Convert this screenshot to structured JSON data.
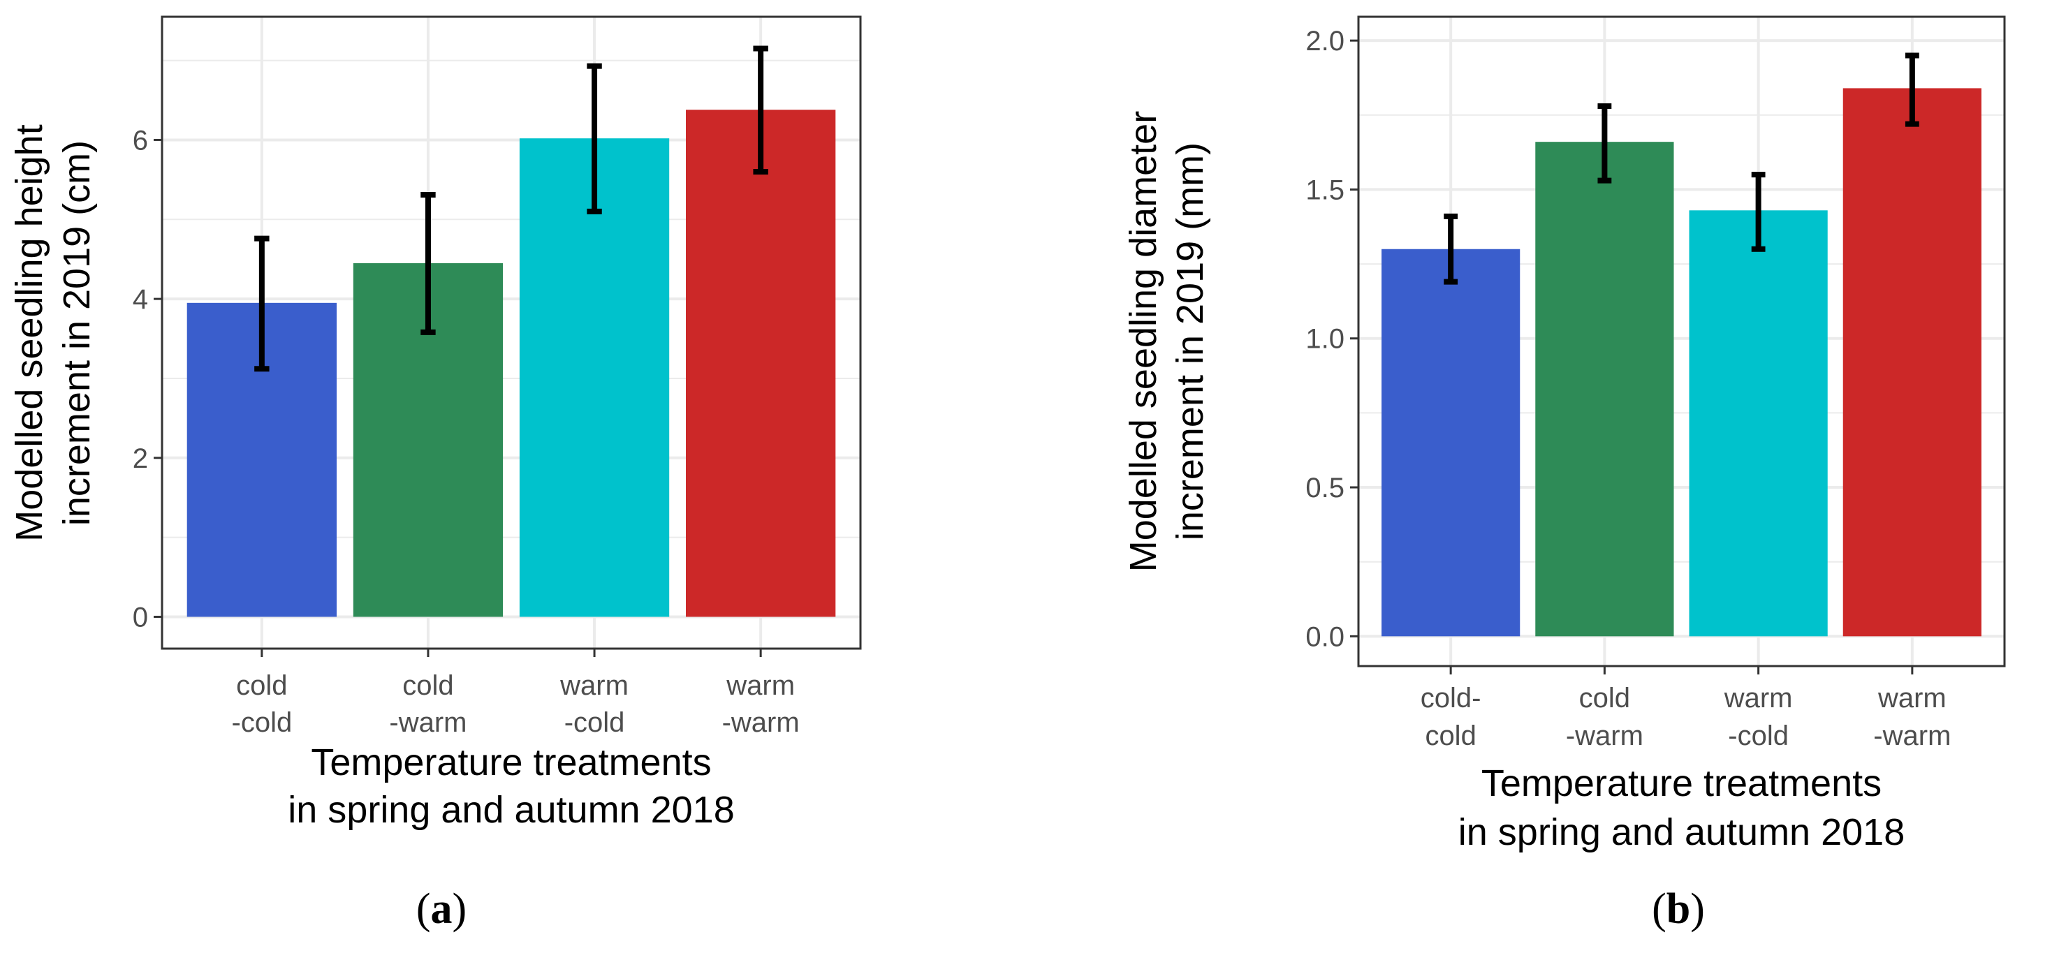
{
  "colors": {
    "cold-cold": "#3a5ecc",
    "cold-warm": "#2e8b57",
    "warm-cold": "#00c2cc",
    "warm-warm": "#cc2828",
    "error_bar": "#000000",
    "grid": "#ebebeb",
    "panel_border": "#333333"
  },
  "chart_data": [
    {
      "type": "bar",
      "panel_label": {
        "open": "(",
        "letter": "a",
        "close": ")"
      },
      "categories": [
        [
          "cold",
          "-cold"
        ],
        [
          "cold",
          "-warm"
        ],
        [
          "warm",
          "-cold"
        ],
        [
          "warm",
          "-warm"
        ]
      ],
      "category_keys": [
        "cold-cold",
        "cold-warm",
        "warm-cold",
        "warm-warm"
      ],
      "values": [
        3.95,
        4.45,
        6.02,
        6.38
      ],
      "error_low": [
        3.12,
        3.58,
        5.1,
        5.6
      ],
      "error_high": [
        4.76,
        5.31,
        6.93,
        7.15
      ],
      "xlabel": [
        "Temperature treatments",
        "in spring and autumn 2018"
      ],
      "ylabel": [
        "Modelled seedling height",
        "increment in 2019 (cm)"
      ],
      "ylim": [
        -0.4,
        7.55
      ],
      "yticks": [
        0,
        2,
        4,
        6
      ],
      "ytick_labels": [
        "0",
        "2",
        "4",
        "6"
      ],
      "grid": true
    },
    {
      "type": "bar",
      "panel_label": {
        "open": "(",
        "letter": "b",
        "close": ")"
      },
      "categories": [
        [
          "cold-",
          "cold"
        ],
        [
          "cold",
          "-warm"
        ],
        [
          "warm",
          "-cold"
        ],
        [
          "warm",
          "-warm"
        ]
      ],
      "category_keys": [
        "cold-cold",
        "cold-warm",
        "warm-cold",
        "warm-warm"
      ],
      "values": [
        1.3,
        1.66,
        1.43,
        1.84
      ],
      "error_low": [
        1.19,
        1.53,
        1.3,
        1.72
      ],
      "error_high": [
        1.41,
        1.78,
        1.55,
        1.95
      ],
      "xlabel": [
        "Temperature treatments",
        "in spring and autumn 2018"
      ],
      "ylabel": [
        "Modelled seedling diameter",
        "increment in 2019 (mm)"
      ],
      "ylim": [
        -0.1,
        2.08
      ],
      "yticks": [
        0.0,
        0.5,
        1.0,
        1.5,
        2.0
      ],
      "ytick_labels": [
        "0.0",
        "0.5",
        "1.0",
        "1.5",
        "2.0"
      ],
      "grid": true
    }
  ]
}
